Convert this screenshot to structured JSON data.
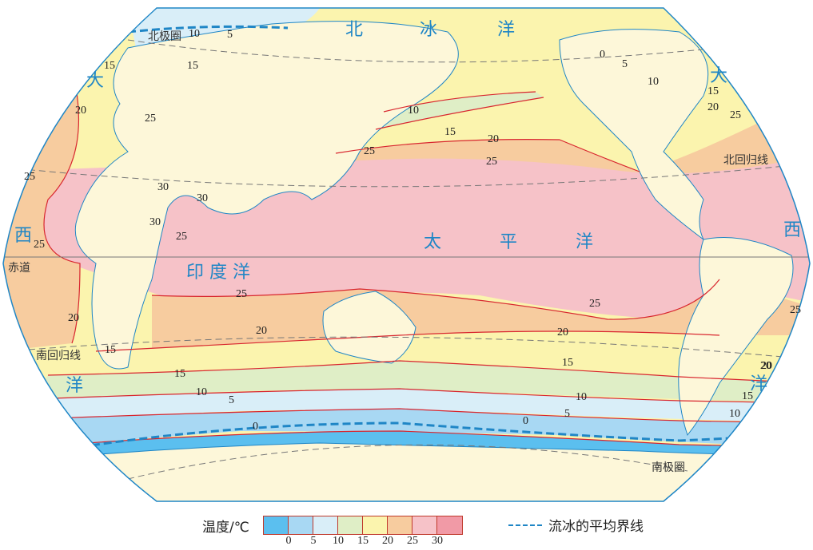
{
  "colors": {
    "band_0": "#5bbfef",
    "band_5": "#a8d8f3",
    "band_10": "#d9eef8",
    "band_15": "#dfeec6",
    "band_20": "#fbf4ae",
    "band_25": "#f7cc9f",
    "band_30": "#f6c2c8",
    "band_hot": "#f19aa6",
    "land": "#fdf7d9",
    "isotherm": "#d8252e",
    "river": "#1f86c6",
    "ice_boundary": "#1f86c6",
    "reference_line": "#777777"
  },
  "oceans": {
    "arctic": [
      "北",
      "冰",
      "洋"
    ],
    "pacific": [
      "太",
      "平",
      "洋"
    ],
    "indian": "印 度 洋",
    "atlantic_left": [
      "大",
      "西",
      "洋"
    ],
    "atlantic_right": [
      "大",
      "西",
      "洋"
    ]
  },
  "reference_lines": {
    "arctic_circle": "北极圈",
    "tropic_cancer": "北回归线",
    "equator": "赤道",
    "tropic_capricorn": "南回归线",
    "antarctic_circle": "南极圈"
  },
  "isotherm_labels": [
    "10",
    "5",
    "15",
    "15",
    "20",
    "25",
    "25",
    "30",
    "30",
    "30",
    "25",
    "25",
    "20",
    "15",
    "20",
    "25",
    "10",
    "15",
    "20",
    "25",
    "25",
    "20",
    "15",
    "10",
    "5",
    "0",
    "25",
    "20",
    "15",
    "10",
    "5",
    "0",
    "0",
    "5",
    "10",
    "15",
    "20",
    "25",
    "25",
    "20",
    "15",
    "10"
  ],
  "legend": {
    "title": "温度/℃",
    "ticks": [
      "0",
      "5",
      "10",
      "15",
      "20",
      "25",
      "30"
    ],
    "ice_line_label": "流冰的平均界线"
  }
}
